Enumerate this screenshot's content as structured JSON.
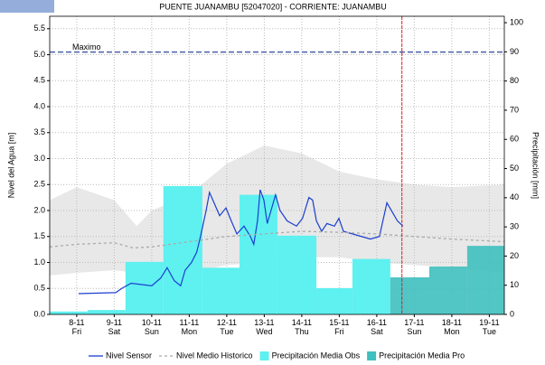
{
  "chart_data": {
    "type": "hydrograph",
    "title": "PUENTE JUANAMBU   [52047020] - CORRIENTE: JUANAMBU",
    "ylabel": "Nivel del Agua [m]",
    "y2label": "Precipitación [mm]",
    "xlim": [
      -0.72,
      11.4
    ],
    "xticks": [
      {
        "value": 0,
        "label": "8-11 Fri"
      },
      {
        "value": 1,
        "label": "9-11 Sat"
      },
      {
        "value": 2,
        "label": "10-11 Sun"
      },
      {
        "value": 3,
        "label": "11-11 Mon"
      },
      {
        "value": 4,
        "label": "12-11 Tue"
      },
      {
        "value": 5,
        "label": "13-11 Wed"
      },
      {
        "value": 6,
        "label": "14-11 Thu"
      },
      {
        "value": 7,
        "label": "15-11 Fri"
      },
      {
        "value": 8,
        "label": "16-11 Sat"
      },
      {
        "value": 9,
        "label": "17-11 Sun"
      },
      {
        "value": 10,
        "label": "18-11 Mon"
      },
      {
        "value": 11,
        "label": "19-11 Tue"
      }
    ],
    "ylim": [
      0,
      5.74
    ],
    "yticks": [
      {
        "value": 0,
        "label": "0.0"
      },
      0.5,
      {
        "value": 1,
        "label": "1.0"
      },
      1.5,
      {
        "value": 2,
        "label": "2.0"
      },
      2.5,
      {
        "value": 3,
        "label": "3.0"
      },
      3.5,
      {
        "value": 4,
        "label": "4.0"
      },
      4.5,
      {
        "value": 5,
        "label": "5.0"
      },
      5.5
    ],
    "y2lim": [
      0,
      102.2
    ],
    "y2ticks": [
      0,
      10,
      20,
      30,
      40,
      50,
      60,
      70,
      80,
      90,
      100
    ],
    "grid": true,
    "range": {
      "color": "#e8e8e8",
      "x": [
        -0.72,
        0,
        1,
        1.6,
        2,
        3,
        4,
        5,
        6,
        7,
        8,
        9,
        10,
        11.4
      ],
      "upper": [
        2.2,
        2.45,
        2.2,
        1.7,
        2.0,
        2.3,
        2.9,
        3.25,
        3.1,
        2.75,
        2.6,
        2.5,
        2.45,
        2.5
      ],
      "lower": [
        0.75,
        0.8,
        0.85,
        0.8,
        0.7,
        0.8,
        0.95,
        1.0,
        1.1,
        1.1,
        1.0,
        0.95,
        0.9,
        0.8
      ]
    },
    "series": [
      {
        "name": "Nivel Sensor",
        "kind": "line",
        "color": "#1a3fcf",
        "x": [
          0.05,
          1.04,
          1.2,
          1.45,
          2.0,
          2.24,
          2.41,
          2.6,
          2.77,
          2.89,
          3.06,
          3.2,
          3.3,
          3.45,
          3.54,
          3.69,
          3.81,
          3.98,
          4.12,
          4.27,
          4.46,
          4.63,
          4.72,
          4.82,
          4.89,
          4.99,
          5.08,
          5.18,
          5.3,
          5.42,
          5.61,
          5.86,
          6.02,
          6.19,
          6.29,
          6.39,
          6.53,
          6.67,
          6.87,
          6.99,
          7.11,
          7.35,
          7.59,
          7.83,
          8.07,
          8.27,
          8.43,
          8.55,
          8.7
        ],
        "values": [
          0.4,
          0.42,
          0.5,
          0.6,
          0.55,
          0.7,
          0.9,
          0.65,
          0.55,
          0.85,
          1.0,
          1.2,
          1.5,
          2.0,
          2.35,
          2.1,
          1.9,
          2.05,
          1.8,
          1.55,
          1.7,
          1.5,
          1.35,
          1.8,
          2.4,
          2.2,
          1.75,
          2.0,
          2.3,
          2.0,
          1.8,
          1.7,
          1.85,
          2.25,
          2.2,
          1.8,
          1.6,
          1.75,
          1.7,
          1.85,
          1.6,
          1.55,
          1.5,
          1.45,
          1.5,
          2.15,
          1.95,
          1.8,
          1.7
        ]
      },
      {
        "name": "Nivel Medio Historico",
        "kind": "dashed",
        "color": "#aaaaaa",
        "x": [
          -0.72,
          0,
          1,
          1.5,
          2,
          3,
          4,
          5,
          6,
          7,
          8,
          9,
          10,
          11.4
        ],
        "values": [
          1.3,
          1.35,
          1.38,
          1.28,
          1.3,
          1.4,
          1.5,
          1.55,
          1.6,
          1.58,
          1.55,
          1.5,
          1.45,
          1.4
        ]
      },
      {
        "name": "Precipitación Media Obs",
        "kind": "bars",
        "axis": "y2",
        "color": "#5ff0f0",
        "edges": [
          -0.72,
          0.29,
          1.3,
          2.31,
          3.35,
          4.34,
          5.35,
          6.39,
          7.35,
          8.36
        ],
        "values": [
          1,
          1.5,
          18,
          44,
          16,
          41,
          27,
          9,
          19
        ]
      },
      {
        "name": "Precipitación Media Pro",
        "kind": "bars",
        "axis": "y2",
        "color": "#3fbfbf",
        "edges": [
          8.36,
          9.4,
          10.41,
          11.4
        ],
        "values": [
          12.7,
          16.4,
          23.5
        ]
      }
    ],
    "max_level": {
      "label": "Maximo",
      "value": 5.05,
      "color": "#4a5fa8"
    },
    "now_line": {
      "value": 8.67,
      "color": "#e02020"
    }
  }
}
